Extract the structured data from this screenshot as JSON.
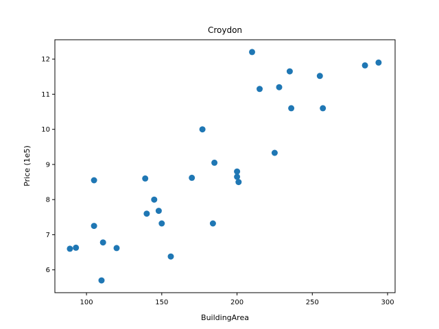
{
  "chart_data": {
    "type": "scatter",
    "title": "Croydon",
    "xlabel": "BuildingArea",
    "ylabel": "Price (1e5)",
    "xlim": [
      79,
      305
    ],
    "ylim": [
      5.35,
      12.55
    ],
    "xticks": [
      100,
      150,
      200,
      250,
      300
    ],
    "yticks": [
      6,
      7,
      8,
      9,
      10,
      11,
      12
    ],
    "grid": false,
    "marker_color": "#1f77b4",
    "points": [
      {
        "x": 89,
        "y": 6.6
      },
      {
        "x": 93,
        "y": 6.63
      },
      {
        "x": 105,
        "y": 8.55
      },
      {
        "x": 105,
        "y": 7.25
      },
      {
        "x": 110,
        "y": 5.7
      },
      {
        "x": 111,
        "y": 6.78
      },
      {
        "x": 120,
        "y": 6.62
      },
      {
        "x": 139,
        "y": 8.6
      },
      {
        "x": 140,
        "y": 7.6
      },
      {
        "x": 145,
        "y": 8.0
      },
      {
        "x": 148,
        "y": 7.68
      },
      {
        "x": 150,
        "y": 7.32
      },
      {
        "x": 156,
        "y": 6.38
      },
      {
        "x": 170,
        "y": 8.62
      },
      {
        "x": 177,
        "y": 10.0
      },
      {
        "x": 184,
        "y": 7.32
      },
      {
        "x": 185,
        "y": 9.05
      },
      {
        "x": 200,
        "y": 8.8
      },
      {
        "x": 200,
        "y": 8.65
      },
      {
        "x": 201,
        "y": 8.5
      },
      {
        "x": 210,
        "y": 12.2
      },
      {
        "x": 215,
        "y": 11.15
      },
      {
        "x": 225,
        "y": 9.33
      },
      {
        "x": 228,
        "y": 11.2
      },
      {
        "x": 235,
        "y": 11.65
      },
      {
        "x": 236,
        "y": 10.6
      },
      {
        "x": 255,
        "y": 11.52
      },
      {
        "x": 257,
        "y": 10.6
      },
      {
        "x": 285,
        "y": 11.82
      },
      {
        "x": 294,
        "y": 11.9
      }
    ]
  }
}
